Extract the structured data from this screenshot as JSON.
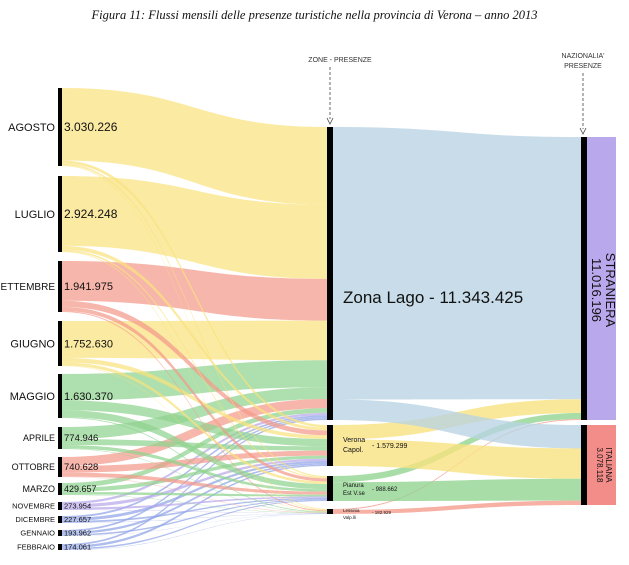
{
  "caption": "Figura 11: Flussi mensili delle presenze turistiche nella provincia di Verona – anno 2013",
  "headers": {
    "zones": "ZONE - PRESENZE",
    "nationality_line1": "NAZIONALIA'",
    "nationality_line2": "PRESENZE"
  },
  "colors": {
    "yellow": "#f9e27e",
    "salmon": "#f49a8b",
    "green": "#8fd38f",
    "lake": "#b8d3e3",
    "lavender": "#b9a8ec",
    "blue": "#8fa3e6",
    "italiana": "#f28d8a",
    "bar": "#000000"
  },
  "months": [
    {
      "name": "AGOSTO",
      "value": "3.030.226",
      "n": 3030226,
      "color": "yellow"
    },
    {
      "name": "LUGLIO",
      "value": "2.924.248",
      "n": 2924248,
      "color": "yellow"
    },
    {
      "name": "SETTEMBRE",
      "value": "1.941.975",
      "n": 1941975,
      "color": "salmon"
    },
    {
      "name": "GIUGNO",
      "value": "1.752.630",
      "n": 1752630,
      "color": "yellow"
    },
    {
      "name": "MAGGIO",
      "value": "1.630.370",
      "n": 1630370,
      "color": "green"
    },
    {
      "name": "APRILE",
      "value": "774.946",
      "n": 774946,
      "color": "green"
    },
    {
      "name": "OTTOBRE",
      "value": "740.628",
      "n": 740628,
      "color": "salmon"
    },
    {
      "name": "MARZO",
      "value": "429.657",
      "n": 429657,
      "color": "green"
    },
    {
      "name": "NOVEMBRE",
      "value": "273.954",
      "n": 273954,
      "color": "lavender"
    },
    {
      "name": "DICEMBRE",
      "value": "227.657",
      "n": 227657,
      "color": "blue"
    },
    {
      "name": "GENNAIO",
      "value": "193.962",
      "n": 193962,
      "color": "blue"
    },
    {
      "name": "FEBBRAIO",
      "value": "174.061",
      "n": 174061,
      "color": "blue"
    }
  ],
  "zones": [
    {
      "name": "Zona Lago",
      "value": "11.343.425",
      "n": 11343425
    },
    {
      "name_line1": "Verona",
      "name_line2": "Capol.",
      "value": "1.579.299",
      "n": 1579299
    },
    {
      "name_line1": "Pianura",
      "name_line2": "Est V.se",
      "value": "988.662",
      "n": 988662
    },
    {
      "name_line1": "Lessinia",
      "name_line2": "Valp.lli",
      "value": "182.929",
      "n": 182929
    }
  ],
  "nationalities": [
    {
      "name": "STRANIERA",
      "value": "11.016.196",
      "n": 11016196
    },
    {
      "name": "ITALIANA",
      "value": "3.078.118",
      "n": 3078118
    }
  ]
}
